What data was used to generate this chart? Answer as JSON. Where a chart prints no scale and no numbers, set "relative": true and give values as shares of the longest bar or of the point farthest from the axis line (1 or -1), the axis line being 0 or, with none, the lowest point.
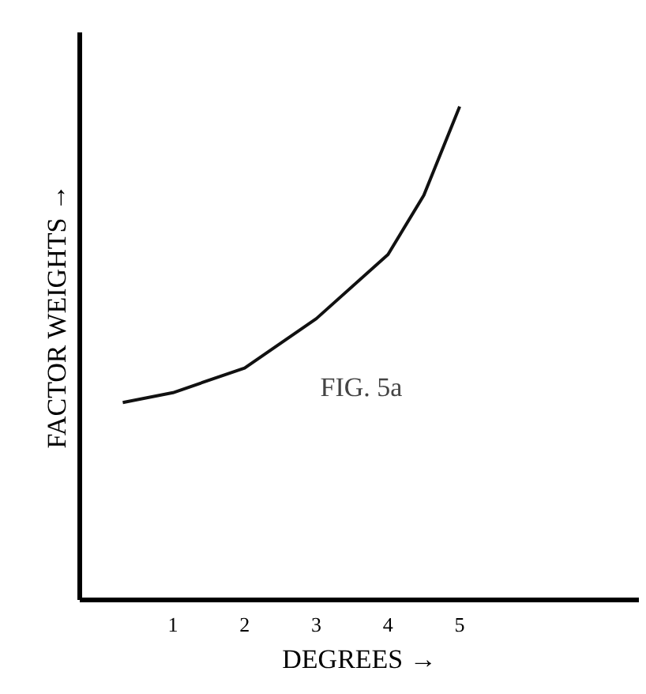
{
  "chart_data": {
    "type": "line",
    "relative": true,
    "xlabel": "DEGREES →",
    "ylabel": "FACTOR WEIGHTS →",
    "annotations": [
      "FIG. 5a"
    ],
    "x": [
      0.3,
      1,
      2,
      3,
      4,
      4.5,
      5
    ],
    "series": [
      {
        "color": "#111111",
        "values": [
          0.4,
          0.42,
          0.47,
          0.57,
          0.7,
          0.82,
          1.0
        ]
      }
    ],
    "xlim": [
      -0.3,
      7.5
    ],
    "xticks": [
      1,
      2,
      3,
      4,
      5
    ],
    "grid": false,
    "marker": "none",
    "line_style": "solid"
  }
}
